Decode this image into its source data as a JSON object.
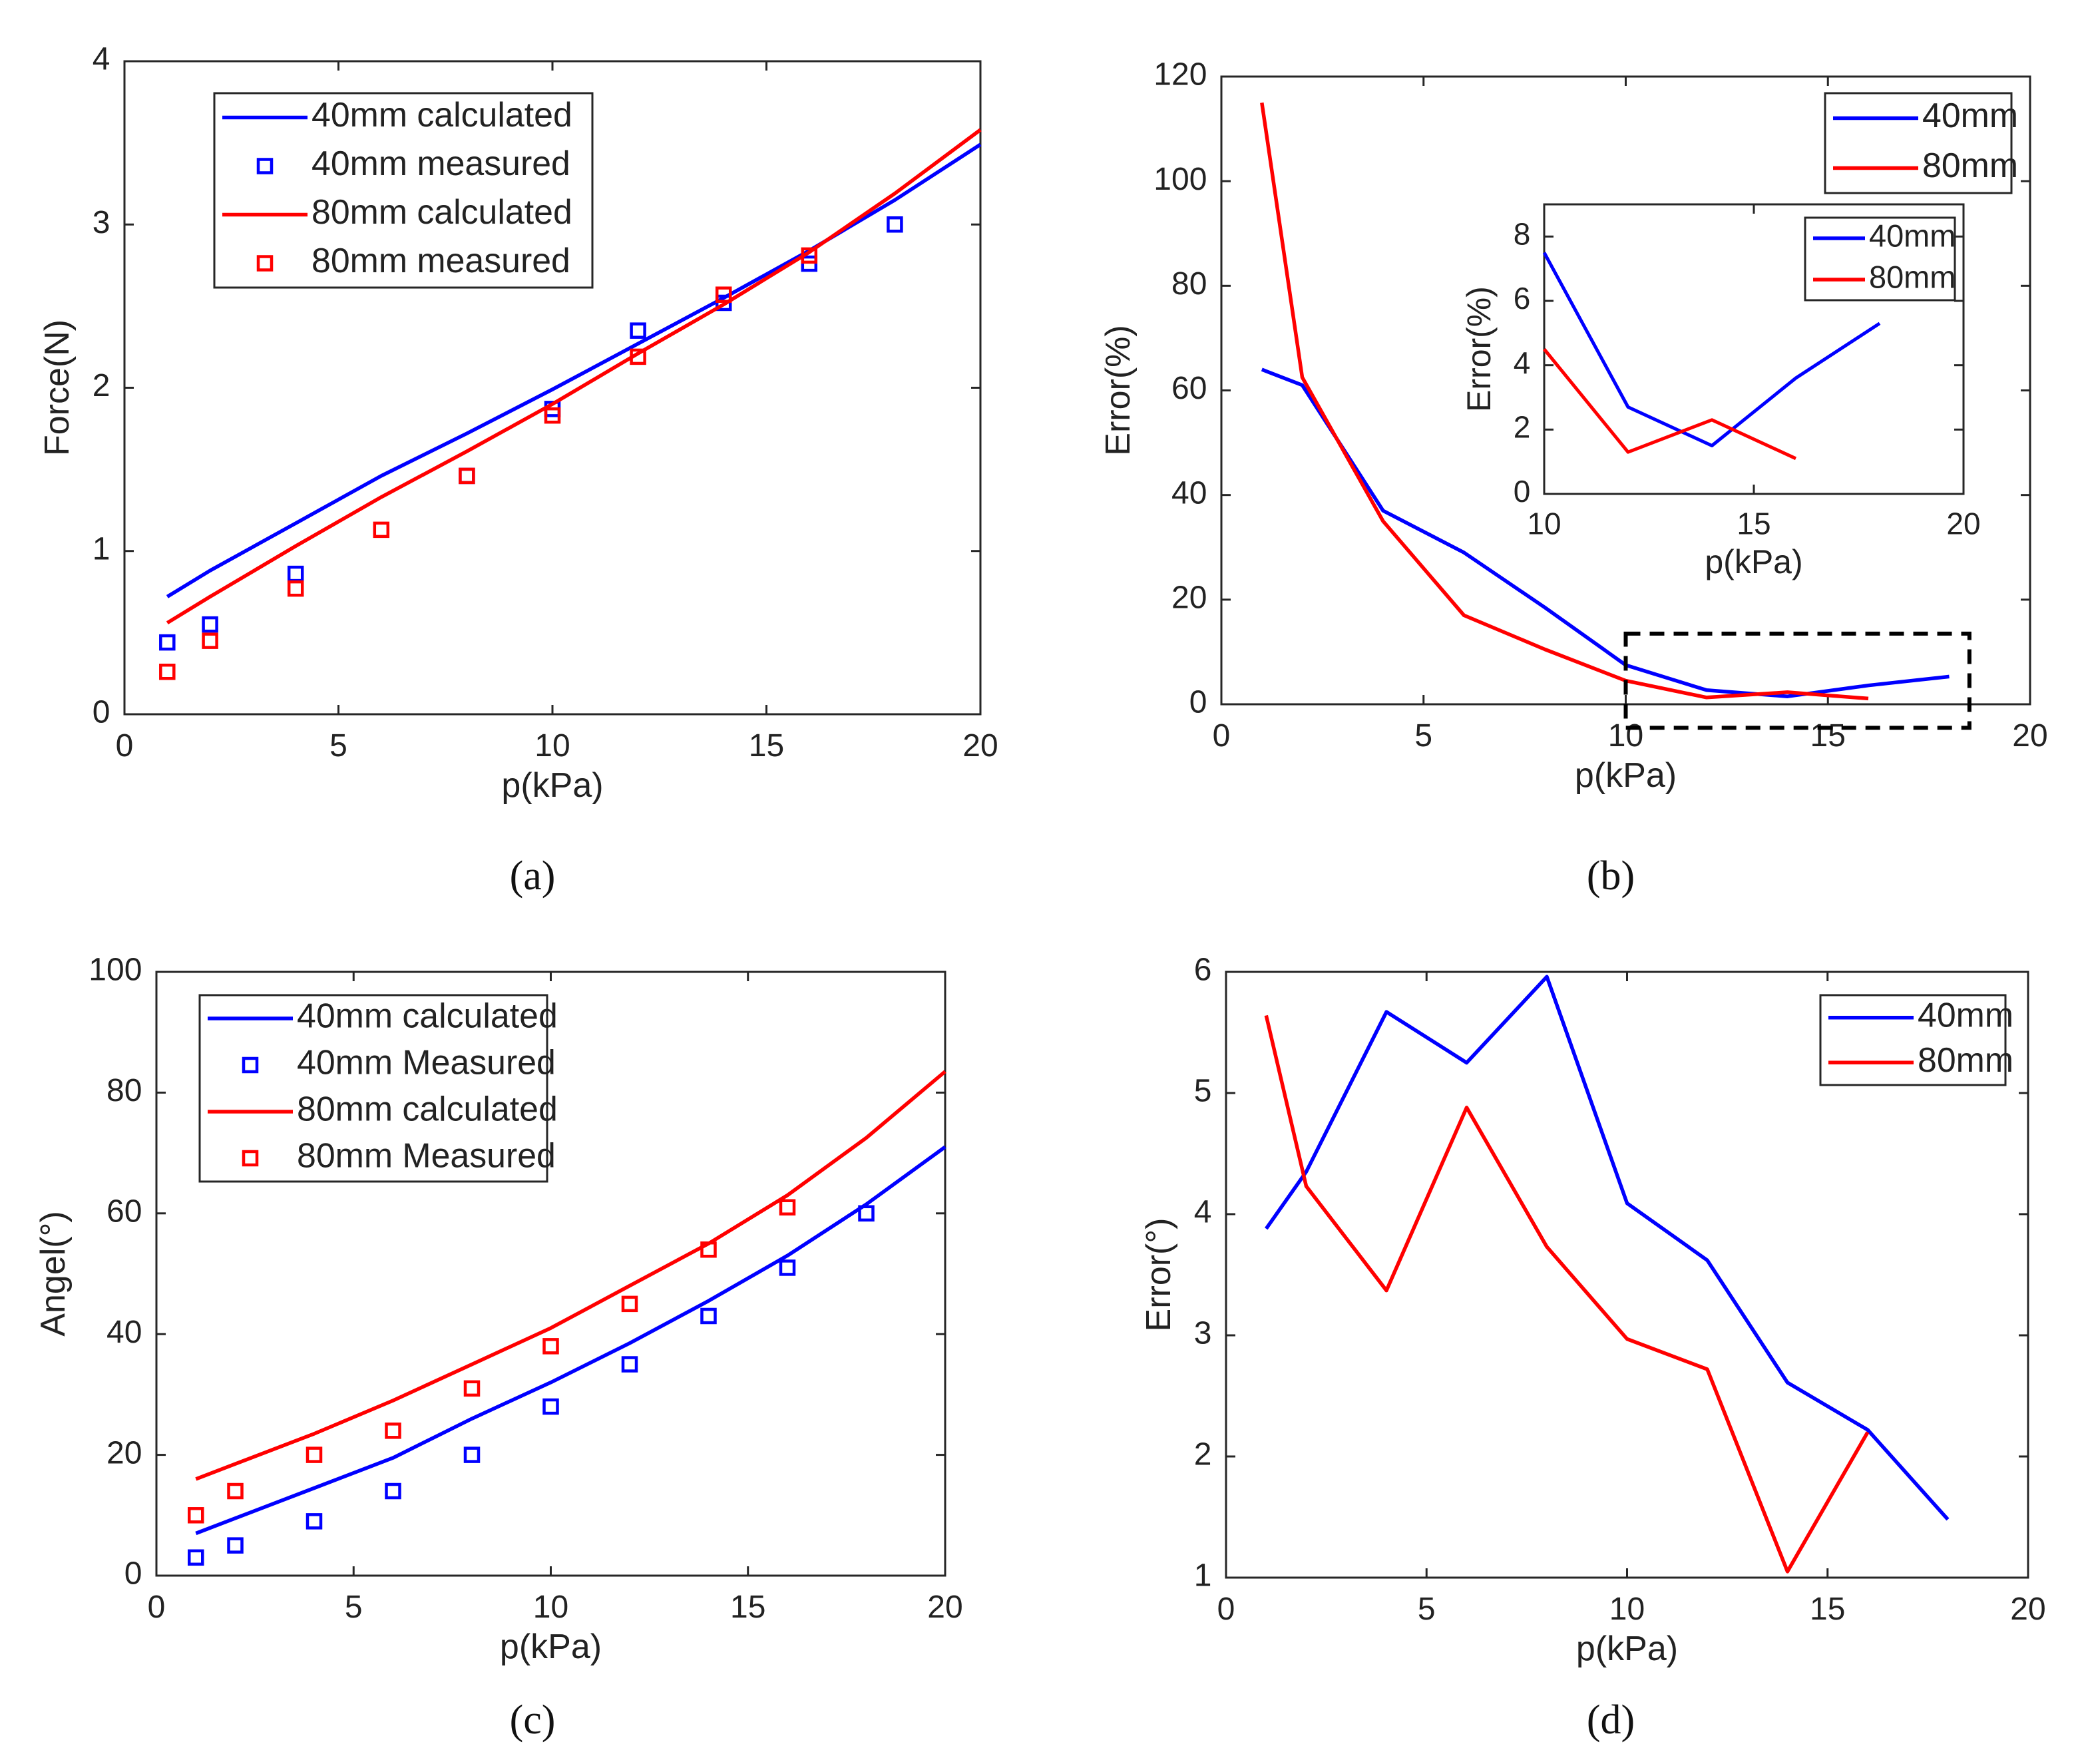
{
  "chart_data": [
    {
      "type": "line",
      "panel_id": "a",
      "caption": "(a)",
      "xlabel": "p(kPa)",
      "ylabel": "Force(N)",
      "xlim": [
        0,
        20
      ],
      "ylim": [
        0,
        4
      ],
      "xticks": [
        0,
        5,
        10,
        15,
        20
      ],
      "yticks": [
        0,
        1,
        2,
        3,
        4
      ],
      "legend_position": "top-left",
      "series": [
        {
          "name": "40mm calculated",
          "style": "line",
          "color": "#0000ff",
          "x": [
            1,
            2,
            4,
            6,
            8,
            10,
            12,
            14,
            16,
            18,
            20
          ],
          "y": [
            0.72,
            0.88,
            1.17,
            1.46,
            1.72,
            1.99,
            2.27,
            2.55,
            2.84,
            3.15,
            3.49
          ]
        },
        {
          "name": "40mm measured",
          "style": "marker",
          "color": "#0000ff",
          "x": [
            1,
            2,
            4,
            8,
            10,
            12,
            14,
            16,
            18
          ],
          "y": [
            0.44,
            0.55,
            0.86,
            1.46,
            1.87,
            2.35,
            2.52,
            2.76,
            3.0
          ]
        },
        {
          "name": "80mm calculated",
          "style": "line",
          "color": "#ff0000",
          "x": [
            1,
            2,
            4,
            6,
            8,
            10,
            12,
            14,
            16,
            18,
            20
          ],
          "y": [
            0.56,
            0.72,
            1.03,
            1.33,
            1.61,
            1.9,
            2.21,
            2.51,
            2.83,
            3.19,
            3.58
          ]
        },
        {
          "name": "80mm measured",
          "style": "marker",
          "color": "#ff0000",
          "x": [
            1,
            2,
            4,
            6,
            8,
            10,
            12,
            14,
            16
          ],
          "y": [
            0.26,
            0.45,
            0.77,
            1.13,
            1.46,
            1.83,
            2.19,
            2.57,
            2.81
          ]
        }
      ]
    },
    {
      "type": "line",
      "panel_id": "b",
      "caption": "(b)",
      "xlabel": "p(kPa)",
      "ylabel": "Error(%)",
      "xlim": [
        0,
        20
      ],
      "ylim": [
        0,
        120
      ],
      "xticks": [
        0,
        5,
        10,
        15,
        20
      ],
      "yticks": [
        0,
        20,
        40,
        60,
        80,
        100,
        120
      ],
      "legend_position": "top-right",
      "highlight_region": {
        "x": [
          10,
          18.5
        ],
        "y": [
          -4.5,
          13.5
        ],
        "style": "dashed"
      },
      "series": [
        {
          "name": "40mm",
          "style": "line",
          "color": "#0000ff",
          "x": [
            1,
            2,
            4,
            6,
            8,
            10,
            12,
            14,
            16,
            18
          ],
          "y": [
            64,
            61,
            37,
            29,
            18.5,
            7.5,
            2.7,
            1.5,
            3.6,
            5.3
          ]
        },
        {
          "name": "80mm",
          "style": "line",
          "color": "#ff0000",
          "x": [
            1,
            2,
            4,
            6,
            8,
            10,
            12,
            14,
            16
          ],
          "y": [
            115,
            62.5,
            35,
            17,
            10.5,
            4.5,
            1.3,
            2.3,
            1.1
          ]
        }
      ],
      "inset": {
        "xlabel": "p(kPa)",
        "ylabel": "Error(%)",
        "xlim": [
          10,
          20
        ],
        "ylim": [
          0,
          9
        ],
        "xticks": [
          10,
          15,
          20
        ],
        "yticks": [
          0,
          2,
          4,
          6,
          8
        ],
        "legend_position": "top-right",
        "series": [
          {
            "name": "40mm",
            "style": "line",
            "color": "#0000ff",
            "x": [
              10,
              12,
              14,
              16,
              18
            ],
            "y": [
              7.5,
              2.7,
              1.5,
              3.6,
              5.3
            ]
          },
          {
            "name": "80mm",
            "style": "line",
            "color": "#ff0000",
            "x": [
              10,
              12,
              14,
              16
            ],
            "y": [
              4.5,
              1.3,
              2.3,
              1.1
            ]
          }
        ]
      }
    },
    {
      "type": "line",
      "panel_id": "c",
      "caption": "(c)",
      "xlabel": "p(kPa)",
      "ylabel": "Angel(°)",
      "xlim": [
        0,
        20
      ],
      "ylim": [
        0,
        100
      ],
      "xticks": [
        0,
        5,
        10,
        15,
        20
      ],
      "yticks": [
        0,
        20,
        40,
        60,
        80,
        100
      ],
      "legend_position": "top-left",
      "series": [
        {
          "name": "40mm calculated",
          "style": "line",
          "color": "#0000ff",
          "x": [
            1,
            2,
            4,
            6,
            8,
            10,
            12,
            14,
            16,
            18,
            20
          ],
          "y": [
            7,
            9.5,
            14.5,
            19.5,
            26,
            32,
            38.5,
            45.5,
            53,
            61.5,
            71
          ]
        },
        {
          "name": "40mm Measured",
          "style": "marker",
          "color": "#0000ff",
          "x": [
            1,
            2,
            4,
            6,
            8,
            10,
            12,
            14,
            16,
            18
          ],
          "y": [
            3,
            5,
            9,
            14,
            20,
            28,
            35,
            43,
            51,
            60
          ]
        },
        {
          "name": "80mm calculated",
          "style": "line",
          "color": "#ff0000",
          "x": [
            1,
            2,
            4,
            6,
            8,
            10,
            12,
            14,
            16,
            18,
            20
          ],
          "y": [
            16,
            18.5,
            23.5,
            29,
            35,
            41,
            48,
            55,
            63,
            72.5,
            83.5
          ]
        },
        {
          "name": "80mm Measured",
          "style": "marker",
          "color": "#ff0000",
          "x": [
            1,
            2,
            4,
            6,
            8,
            10,
            12,
            14,
            16
          ],
          "y": [
            10,
            14,
            20,
            24,
            31,
            38,
            45,
            54,
            61
          ]
        }
      ]
    },
    {
      "type": "line",
      "panel_id": "d",
      "caption": "(d)",
      "xlabel": "p(kPa)",
      "ylabel": "Error(°)",
      "xlim": [
        0,
        20
      ],
      "ylim": [
        1,
        6
      ],
      "xticks": [
        0,
        5,
        10,
        15,
        20
      ],
      "yticks": [
        1,
        2,
        3,
        4,
        5,
        6
      ],
      "legend_position": "top-right",
      "series": [
        {
          "name": "40mm",
          "style": "line",
          "color": "#0000ff",
          "x": [
            1,
            2,
            4,
            6,
            8,
            10,
            12,
            14,
            16,
            18
          ],
          "y": [
            3.88,
            4.35,
            5.67,
            5.25,
            5.96,
            4.09,
            3.62,
            2.61,
            2.22,
            1.48
          ]
        },
        {
          "name": "80mm",
          "style": "line",
          "color": "#ff0000",
          "x": [
            1,
            2,
            4,
            6,
            8,
            10,
            12,
            14,
            16
          ],
          "y": [
            5.64,
            4.23,
            3.37,
            4.88,
            3.73,
            2.97,
            2.72,
            1.05,
            2.2
          ]
        }
      ]
    }
  ]
}
